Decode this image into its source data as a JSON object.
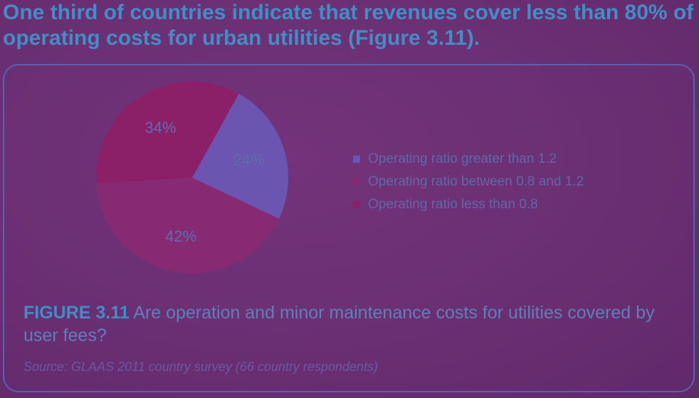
{
  "headline": "One third of countries indicate that revenues cover less than 80% of operating costs for urban utilities (Figure 3.11).",
  "caption": {
    "figure_number": "FIGURE 3.11",
    "text": " Are operation and minor maintenance costs for utilities covered by user fees?"
  },
  "source": "Source: GLAAS 2011 country survey (66 country respondents)",
  "chart_data": {
    "type": "pie",
    "title": "",
    "slices": [
      {
        "name": "Operating ratio greater than 1.2",
        "value": 24,
        "label": "24%",
        "color": "#6a55b0"
      },
      {
        "name": "Operating ratio between 0.8 and 1.2",
        "value": 42,
        "label": "42%",
        "color": "#872a74"
      },
      {
        "name": "Operating ratio less than 0.8",
        "value": 34,
        "label": "34%",
        "color": "#8c2068"
      }
    ],
    "legend_position": "right"
  },
  "colors": {
    "background": "#6a2f72",
    "headline": "#3f8fc6",
    "panel_border": "#5a5fb8"
  }
}
